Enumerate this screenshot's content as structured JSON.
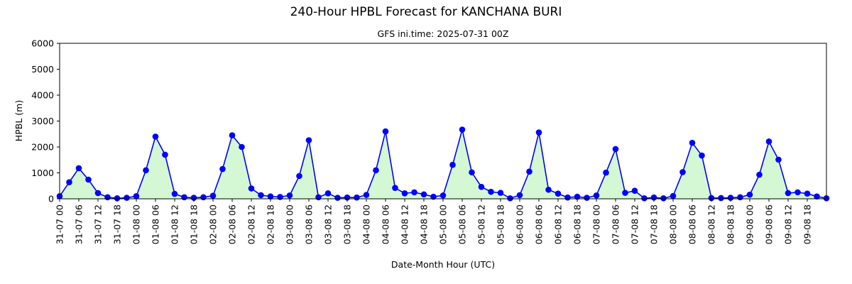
{
  "chart_data": {
    "type": "line",
    "title": "240-Hour HPBL Forecast for KANCHANA BURI",
    "subtitle": "GFS ini.time: 2025-07-31 00Z",
    "xlabel": "Date-Month Hour (UTC)",
    "ylabel": "HPBL (m)",
    "ylim": [
      0,
      6000
    ],
    "yticks": [
      0,
      1000,
      2000,
      3000,
      4000,
      5000,
      6000
    ],
    "grid": false,
    "fill_under": true,
    "colors": {
      "line": "#0000ff",
      "marker": "#0000ff",
      "fill": "#d3f8d3"
    },
    "x_labels": [
      "31-07 00",
      "31-07 06",
      "31-07 12",
      "31-07 18",
      "01-08 00",
      "01-08 06",
      "01-08 12",
      "01-08 18",
      "02-08 00",
      "02-08 06",
      "02-08 12",
      "02-08 18",
      "03-08 00",
      "03-08 06",
      "03-08 12",
      "03-08 18",
      "04-08 00",
      "04-08 06",
      "04-08 12",
      "04-08 18",
      "05-08 00",
      "05-08 06",
      "05-08 12",
      "05-08 18",
      "06-08 00",
      "06-08 06",
      "06-08 12",
      "06-08 18",
      "07-08 00",
      "07-08 06",
      "07-08 12",
      "07-08 18",
      "08-08 00",
      "08-08 06",
      "08-08 12",
      "08-08 18",
      "09-08 00",
      "09-08 06",
      "09-08 12",
      "09-08 18"
    ],
    "series": [
      {
        "values": [
          100,
          640,
          1180,
          740,
          220,
          60,
          20,
          40,
          100,
          1100,
          2400,
          1700,
          190,
          60,
          40,
          60,
          120,
          1150,
          2450,
          2000,
          400,
          140,
          90,
          70,
          130,
          880,
          2260,
          60,
          210,
          40,
          50,
          50,
          150,
          1100,
          2600,
          420,
          210,
          250,
          170,
          80,
          130,
          1310,
          2670,
          1020,
          460,
          270,
          230,
          20,
          140,
          1050,
          2560,
          350,
          200,
          50,
          80,
          40,
          130,
          1010,
          1920,
          230,
          310,
          20,
          50,
          20,
          110,
          1030,
          2160,
          1670,
          30,
          30,
          40,
          60,
          160,
          930,
          2210,
          1510,
          220,
          250,
          200,
          90,
          20
        ]
      }
    ]
  }
}
